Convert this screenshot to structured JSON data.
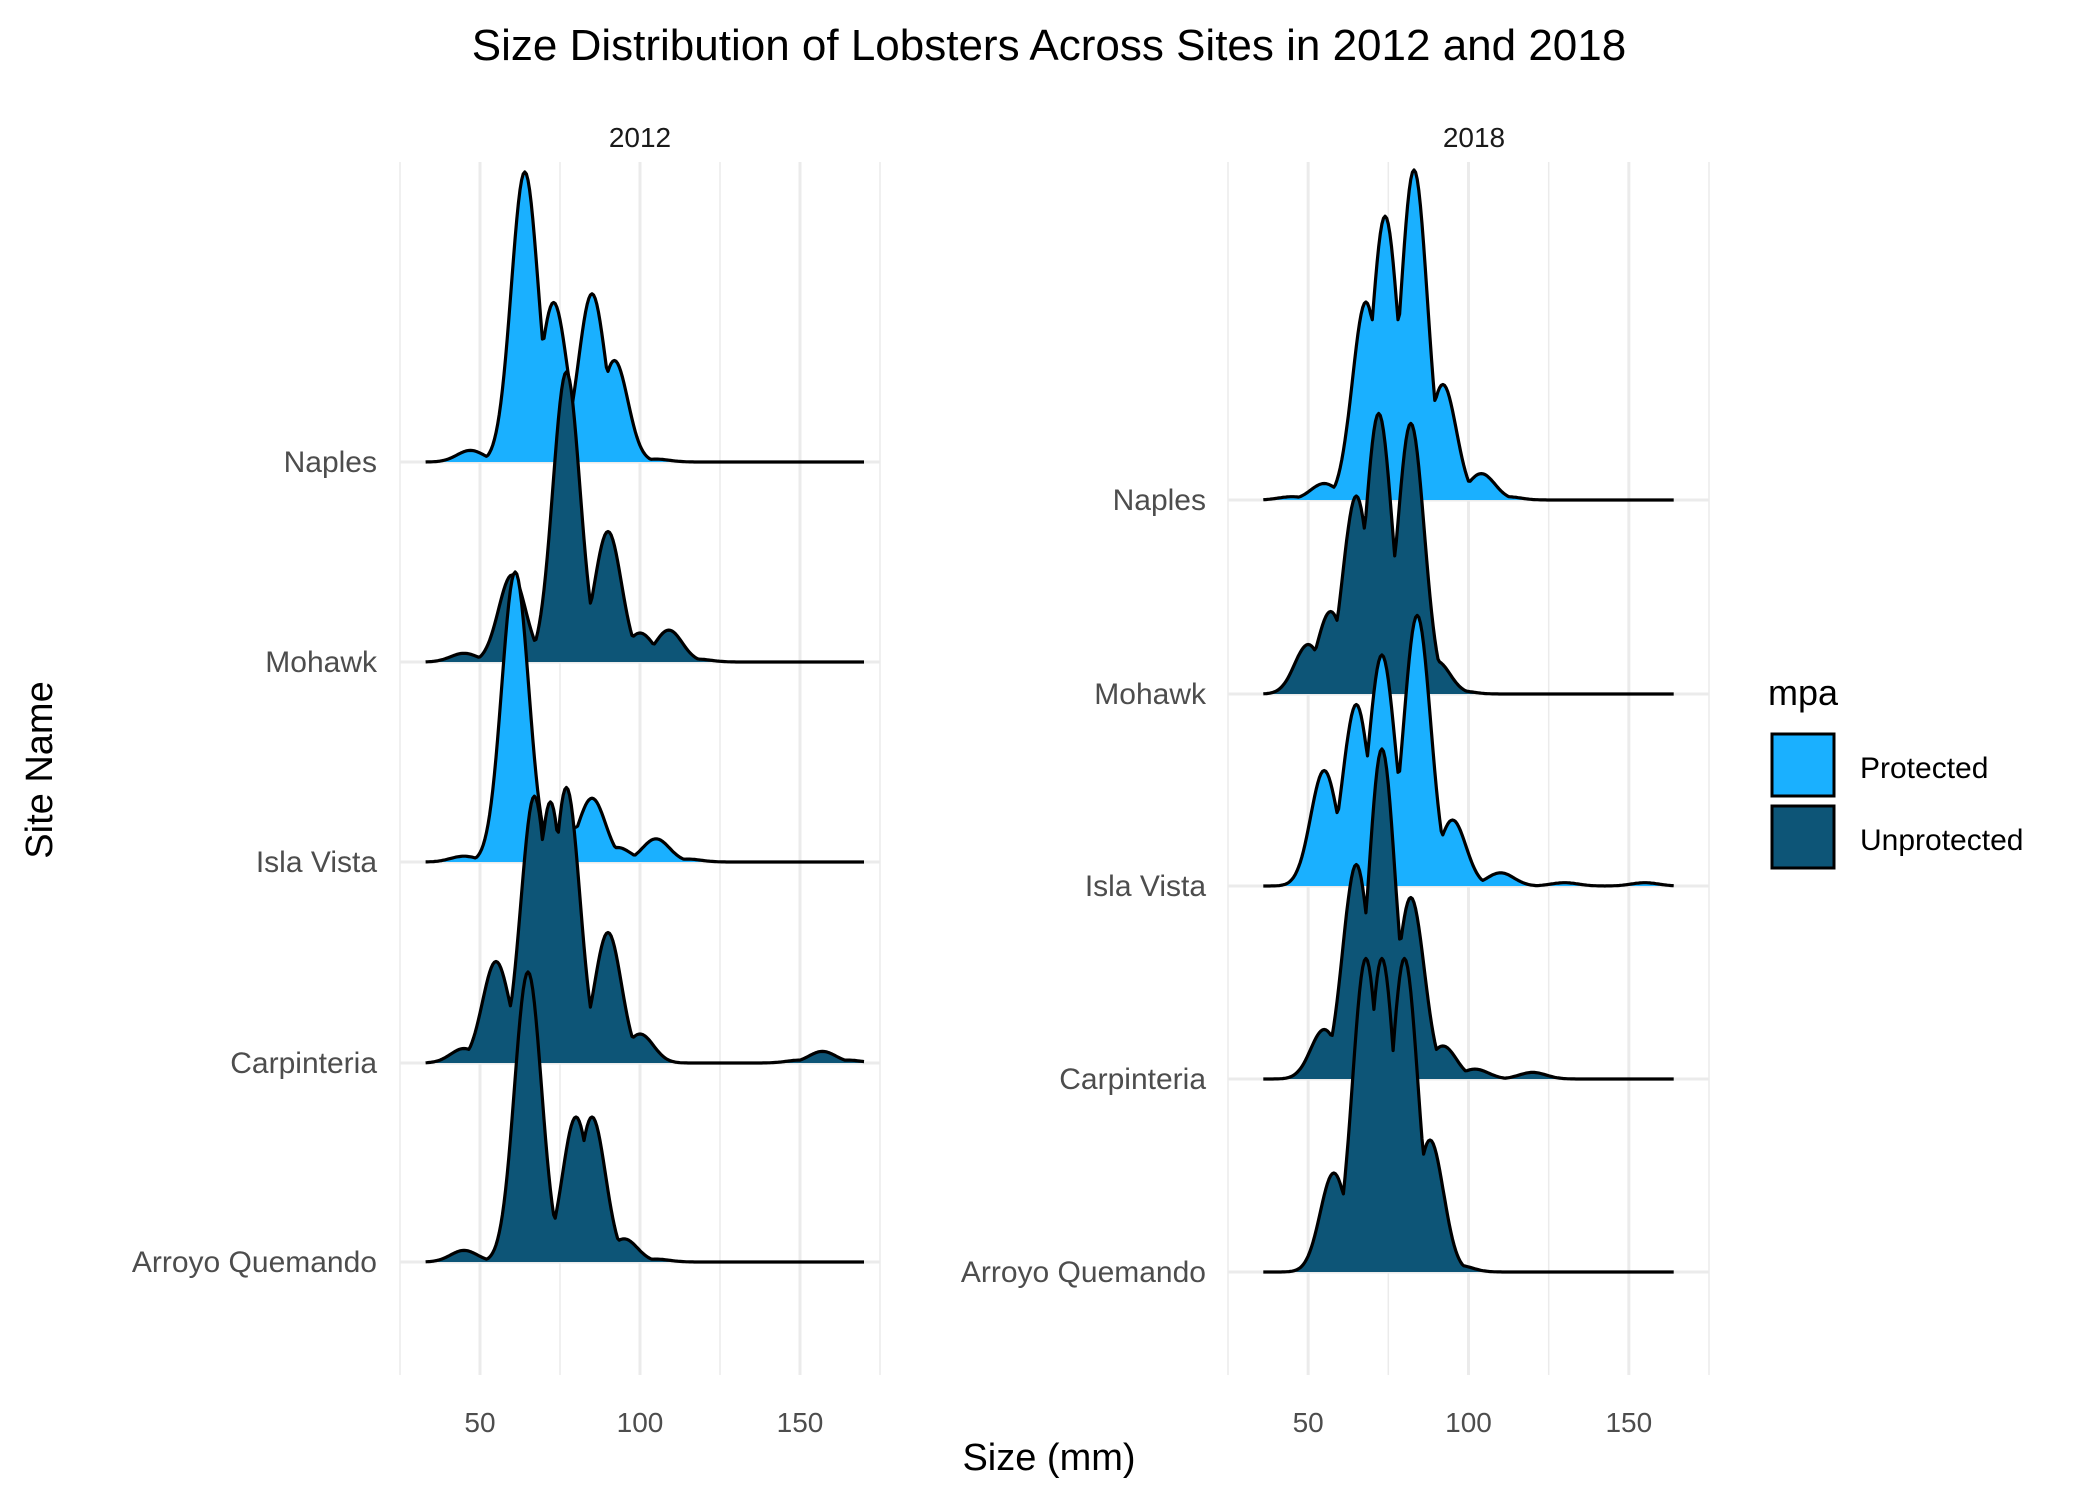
{
  "chart_data": {
    "type": "ridgeline",
    "title": "Size Distribution of Lobsters Across Sites in 2012 and 2018",
    "xlabel": "Size (mm)",
    "ylabel": "Site Name",
    "xticks": [
      50,
      100,
      150
    ],
    "xlim": [
      25,
      175
    ],
    "grid": true,
    "legend": {
      "title": "mpa",
      "position": "right",
      "entries": [
        {
          "label": "Protected",
          "color": "#1AB0FF"
        },
        {
          "label": "Unprotected",
          "color": "#0D5577"
        }
      ]
    },
    "sites": [
      "Arroyo Quemando",
      "Carpinteria",
      "Isla Vista",
      "Mohawk",
      "Naples"
    ],
    "panels": [
      {
        "label": "2012",
        "ridges": [
          {
            "site": "Naples",
            "mpa": "Protected",
            "x_range": [
              33,
              170
            ],
            "peaks": [
              [
                47,
                0.04
              ],
              [
                64,
                1.0
              ],
              [
                73,
                0.55
              ],
              [
                85,
                0.58
              ],
              [
                92,
                0.35
              ],
              [
                105,
                0.01
              ]
            ]
          },
          {
            "site": "Mohawk",
            "mpa": "Unprotected",
            "x_range": [
              33,
              170
            ],
            "peaks": [
              [
                45,
                0.03
              ],
              [
                60,
                0.3
              ],
              [
                77,
                1.0
              ],
              [
                90,
                0.45
              ],
              [
                100,
                0.1
              ],
              [
                109,
                0.11
              ],
              [
                118,
                0.01
              ]
            ]
          },
          {
            "site": "Isla Vista",
            "mpa": "Protected",
            "x_range": [
              33,
              170
            ],
            "peaks": [
              [
                45,
                0.02
              ],
              [
                61,
                1.0
              ],
              [
                72,
                0.1
              ],
              [
                80,
                0.12
              ],
              [
                85,
                0.22
              ],
              [
                93,
                0.05
              ],
              [
                105,
                0.08
              ],
              [
                115,
                0.01
              ]
            ]
          },
          {
            "site": "Carpinteria",
            "mpa": "Unprotected",
            "x_range": [
              33,
              170
            ],
            "peaks": [
              [
                45,
                0.05
              ],
              [
                55,
                0.35
              ],
              [
                67,
                0.92
              ],
              [
                72,
                0.9
              ],
              [
                77,
                0.95
              ],
              [
                90,
                0.45
              ],
              [
                100,
                0.1
              ],
              [
                150,
                0.01
              ],
              [
                157,
                0.04
              ],
              [
                165,
                0.01
              ]
            ]
          },
          {
            "site": "Arroyo Quemando",
            "mpa": "Unprotected",
            "x_range": [
              33,
              170
            ],
            "peaks": [
              [
                45,
                0.04
              ],
              [
                65,
                1.0
              ],
              [
                80,
                0.5
              ],
              [
                85,
                0.5
              ],
              [
                95,
                0.08
              ],
              [
                105,
                0.01
              ]
            ]
          }
        ]
      },
      {
        "label": "2018",
        "ridges": [
          {
            "site": "Naples",
            "mpa": "Protected",
            "x_range": [
              36,
              164
            ],
            "peaks": [
              [
                45,
                0.01
              ],
              [
                55,
                0.05
              ],
              [
                68,
                0.6
              ],
              [
                74,
                0.86
              ],
              [
                83,
                1.0
              ],
              [
                92,
                0.35
              ],
              [
                104,
                0.08
              ],
              [
                112,
                0.01
              ]
            ]
          },
          {
            "site": "Mohawk",
            "mpa": "Unprotected",
            "x_range": [
              36,
              164
            ],
            "peaks": [
              [
                50,
                0.15
              ],
              [
                57,
                0.25
              ],
              [
                65,
                0.6
              ],
              [
                72,
                0.85
              ],
              [
                82,
                0.82
              ],
              [
                90,
                0.1
              ],
              [
                97,
                0.01
              ]
            ]
          },
          {
            "site": "Isla Vista",
            "mpa": "Protected",
            "x_range": [
              36,
              164
            ],
            "peaks": [
              [
                55,
                0.35
              ],
              [
                65,
                0.55
              ],
              [
                73,
                0.7
              ],
              [
                84,
                0.82
              ],
              [
                95,
                0.2
              ],
              [
                110,
                0.04
              ],
              [
                130,
                0.01
              ],
              [
                155,
                0.01
              ]
            ]
          },
          {
            "site": "Carpinteria",
            "mpa": "Unprotected",
            "x_range": [
              36,
              164
            ],
            "peaks": [
              [
                55,
                0.15
              ],
              [
                65,
                0.65
              ],
              [
                73,
                1.0
              ],
              [
                82,
                0.55
              ],
              [
                92,
                0.1
              ],
              [
                102,
                0.03
              ],
              [
                120,
                0.02
              ]
            ]
          },
          {
            "site": "Arroyo Quemando",
            "mpa": "Unprotected",
            "x_range": [
              36,
              164
            ],
            "peaks": [
              [
                58,
                0.3
              ],
              [
                68,
                0.95
              ],
              [
                73,
                0.95
              ],
              [
                80,
                0.95
              ],
              [
                88,
                0.4
              ],
              [
                97,
                0.02
              ]
            ]
          }
        ]
      }
    ]
  }
}
